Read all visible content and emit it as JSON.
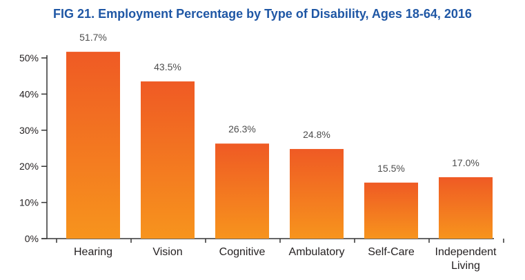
{
  "title": "FIG 21. Employment Percentage by Type of Disability, Ages 18-64, 2016",
  "colors": {
    "title": "#1f57a5",
    "bar_top": "#ef5a24",
    "bar_bottom": "#f7941d",
    "axis": "#333333",
    "text": "#231f20",
    "value_label": "#4d4d4d"
  },
  "chart_data": {
    "type": "bar",
    "title": "FIG 21. Employment Percentage by Type of Disability, Ages 18-64, 2016",
    "xlabel": "",
    "ylabel": "",
    "categories": [
      "Hearing",
      "Vision",
      "Cognitive",
      "Ambulatory",
      "Self-Care",
      "Independent Living"
    ],
    "values": [
      51.7,
      43.5,
      26.3,
      24.8,
      15.5,
      17.0
    ],
    "value_labels": [
      "51.7%",
      "43.5%",
      "26.3%",
      "24.8%",
      "15.5%",
      "17.0%"
    ],
    "ylim": [
      0,
      50
    ],
    "yticks": [
      0,
      10,
      20,
      30,
      40,
      50
    ],
    "ytick_labels": [
      "0%",
      "10%",
      "20%",
      "30%",
      "40%",
      "50%"
    ],
    "grid": false,
    "legend": "none"
  }
}
